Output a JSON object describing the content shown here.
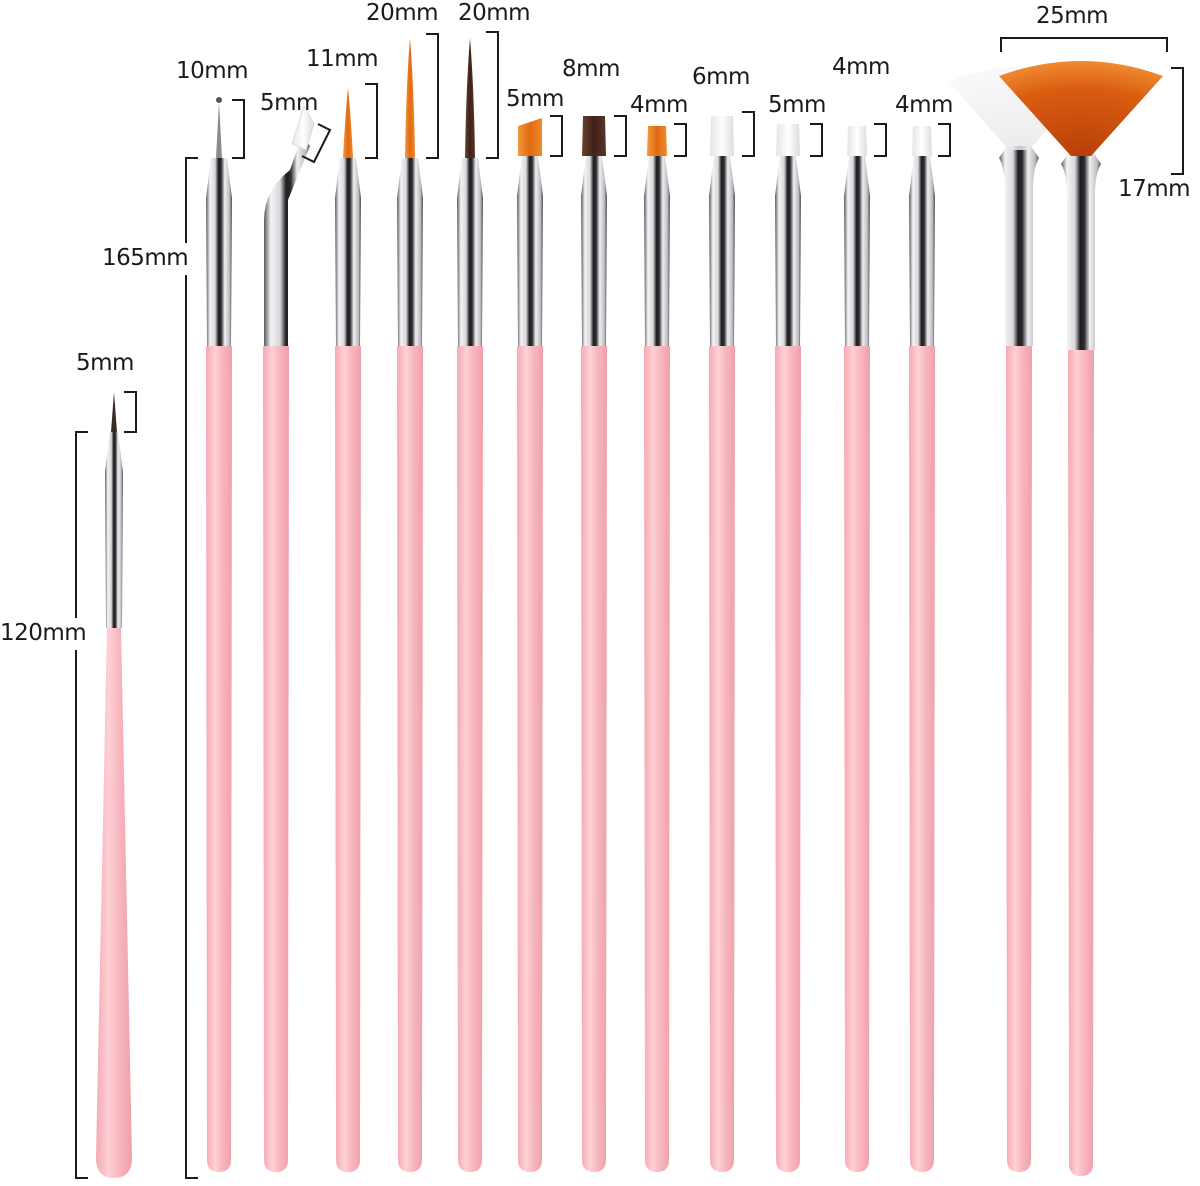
{
  "product": {
    "subject": "Nail art brush set",
    "handle_color": "#f7b8c0",
    "ferrule_color": "#c9c9cc"
  },
  "colors": {
    "orange_bristle": "#e8781a",
    "brown_bristle": "#4a2c22",
    "white_bristle": "#f2f2f2",
    "dark_tip": "#555555"
  },
  "dimensions": {
    "short_brush_length": "120mm",
    "long_brush_length": "165mm",
    "fan_width": "25mm",
    "fan_height": "17mm"
  },
  "brushes": [
    {
      "type": "liner",
      "bristle_color": "brown",
      "tip_label": "5mm"
    },
    {
      "type": "dotting",
      "bristle_color": "metal",
      "tip_label": "10mm"
    },
    {
      "type": "angled-bent",
      "bristle_color": "white",
      "tip_label": "5mm"
    },
    {
      "type": "liner",
      "bristle_color": "orange",
      "tip_label": "11mm"
    },
    {
      "type": "striper",
      "bristle_color": "orange",
      "tip_label": "20mm"
    },
    {
      "type": "striper",
      "bristle_color": "brown",
      "tip_label": "20mm"
    },
    {
      "type": "angled-flat",
      "bristle_color": "orange",
      "tip_label": "5mm"
    },
    {
      "type": "flat",
      "bristle_color": "brown",
      "tip_label": "8mm"
    },
    {
      "type": "flat",
      "bristle_color": "orange",
      "tip_label": "4mm"
    },
    {
      "type": "flat",
      "bristle_color": "white",
      "tip_label": "6mm"
    },
    {
      "type": "flat",
      "bristle_color": "white",
      "tip_label": "5mm"
    },
    {
      "type": "flat",
      "bristle_color": "white",
      "tip_label": "4mm"
    },
    {
      "type": "flat",
      "bristle_color": "white",
      "tip_label": "4mm"
    },
    {
      "type": "fan",
      "bristle_color": "white",
      "tip_label": ""
    },
    {
      "type": "fan",
      "bristle_color": "orange",
      "tip_label": ""
    }
  ]
}
